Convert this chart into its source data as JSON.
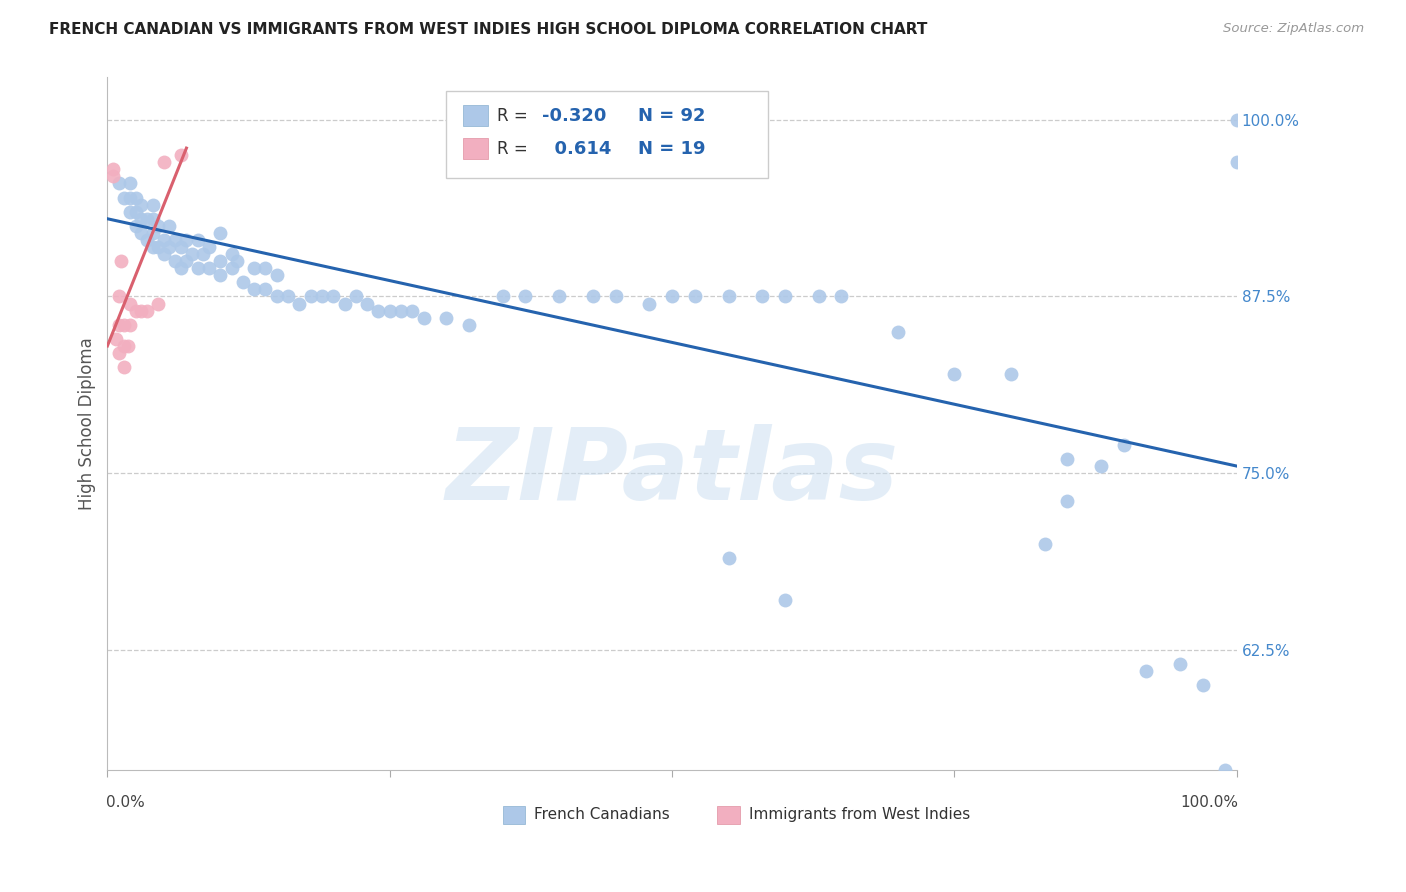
{
  "title": "FRENCH CANADIAN VS IMMIGRANTS FROM WEST INDIES HIGH SCHOOL DIPLOMA CORRELATION CHART",
  "source": "Source: ZipAtlas.com",
  "ylabel": "High School Diploma",
  "blue_R": -0.32,
  "blue_N": 92,
  "pink_R": 0.614,
  "pink_N": 19,
  "blue_color": "#adc8e8",
  "pink_color": "#f2afc0",
  "blue_line_color": "#2563ae",
  "pink_line_color": "#d9606e",
  "yticks_labels": [
    "100.0%",
    "87.5%",
    "75.0%",
    "62.5%"
  ],
  "ytick_vals": [
    1.0,
    0.875,
    0.75,
    0.625
  ],
  "ymin": 0.54,
  "ymax": 1.03,
  "xmin": 0.0,
  "xmax": 1.0,
  "blue_x": [
    0.01,
    0.015,
    0.02,
    0.02,
    0.02,
    0.025,
    0.025,
    0.025,
    0.03,
    0.03,
    0.03,
    0.035,
    0.035,
    0.04,
    0.04,
    0.04,
    0.04,
    0.045,
    0.045,
    0.05,
    0.05,
    0.055,
    0.055,
    0.06,
    0.06,
    0.065,
    0.065,
    0.07,
    0.07,
    0.075,
    0.08,
    0.08,
    0.085,
    0.09,
    0.09,
    0.1,
    0.1,
    0.1,
    0.11,
    0.11,
    0.115,
    0.12,
    0.13,
    0.13,
    0.14,
    0.14,
    0.15,
    0.15,
    0.16,
    0.17,
    0.18,
    0.19,
    0.2,
    0.21,
    0.22,
    0.23,
    0.24,
    0.25,
    0.26,
    0.27,
    0.28,
    0.3,
    0.32,
    0.35,
    0.37,
    0.4,
    0.43,
    0.45,
    0.48,
    0.5,
    0.52,
    0.55,
    0.58,
    0.6,
    0.63,
    0.65,
    0.7,
    0.75,
    0.8,
    0.83,
    0.85,
    0.88,
    0.9,
    0.92,
    0.95,
    0.97,
    0.99,
    1.0,
    1.0,
    0.85,
    0.55,
    0.6
  ],
  "blue_y": [
    0.955,
    0.945,
    0.935,
    0.945,
    0.955,
    0.925,
    0.935,
    0.945,
    0.92,
    0.93,
    0.94,
    0.915,
    0.93,
    0.91,
    0.92,
    0.93,
    0.94,
    0.91,
    0.925,
    0.905,
    0.915,
    0.91,
    0.925,
    0.9,
    0.915,
    0.895,
    0.91,
    0.9,
    0.915,
    0.905,
    0.895,
    0.915,
    0.905,
    0.895,
    0.91,
    0.89,
    0.9,
    0.92,
    0.895,
    0.905,
    0.9,
    0.885,
    0.88,
    0.895,
    0.88,
    0.895,
    0.875,
    0.89,
    0.875,
    0.87,
    0.875,
    0.875,
    0.875,
    0.87,
    0.875,
    0.87,
    0.865,
    0.865,
    0.865,
    0.865,
    0.86,
    0.86,
    0.855,
    0.875,
    0.875,
    0.875,
    0.875,
    0.875,
    0.87,
    0.875,
    0.875,
    0.875,
    0.875,
    0.875,
    0.875,
    0.875,
    0.85,
    0.82,
    0.82,
    0.7,
    0.76,
    0.755,
    0.77,
    0.61,
    0.615,
    0.6,
    0.54,
    1.0,
    0.97,
    0.73,
    0.69,
    0.66
  ],
  "pink_x": [
    0.005,
    0.005,
    0.008,
    0.01,
    0.01,
    0.01,
    0.012,
    0.015,
    0.015,
    0.015,
    0.018,
    0.02,
    0.02,
    0.025,
    0.03,
    0.035,
    0.045,
    0.05,
    0.065
  ],
  "pink_y": [
    0.96,
    0.965,
    0.845,
    0.835,
    0.855,
    0.875,
    0.9,
    0.825,
    0.84,
    0.855,
    0.84,
    0.855,
    0.87,
    0.865,
    0.865,
    0.865,
    0.87,
    0.97,
    0.975
  ],
  "blue_line_x": [
    0.0,
    1.0
  ],
  "blue_line_y": [
    0.93,
    0.755
  ],
  "pink_line_x": [
    0.0,
    0.07
  ],
  "pink_line_y": [
    0.84,
    0.98
  ]
}
